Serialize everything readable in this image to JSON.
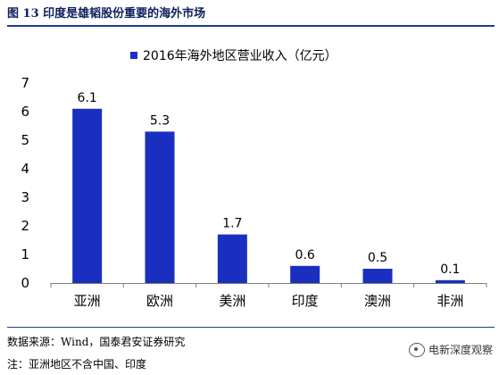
{
  "figure": {
    "title": "图 13  印度是雄韬股份重要的海外市场",
    "source": "数据来源：Wind，国泰君安证券研究",
    "note": "注：亚洲地区不含中国、印度",
    "watermark": "电新深度观察",
    "watermark_icon": "wechat-icon"
  },
  "chart_data": {
    "type": "bar",
    "title": "",
    "categories": [
      "亚洲",
      "欧洲",
      "美洲",
      "印度",
      "澳洲",
      "非洲"
    ],
    "series": [
      {
        "name": "2016年海外地区营业收入（亿元）",
        "values": [
          6.1,
          5.3,
          1.7,
          0.6,
          0.5,
          0.1
        ],
        "color": "#1a2fbf"
      }
    ],
    "data_labels": [
      "6.1",
      "5.3",
      "1.7",
      "0.6",
      "0.5",
      "0.1"
    ],
    "yticks": [
      "0",
      "1",
      "2",
      "3",
      "4",
      "5",
      "6",
      "7"
    ],
    "ylim": [
      0,
      7
    ],
    "xlabel": "",
    "ylabel": "",
    "grid": false,
    "legend_position": "top"
  }
}
